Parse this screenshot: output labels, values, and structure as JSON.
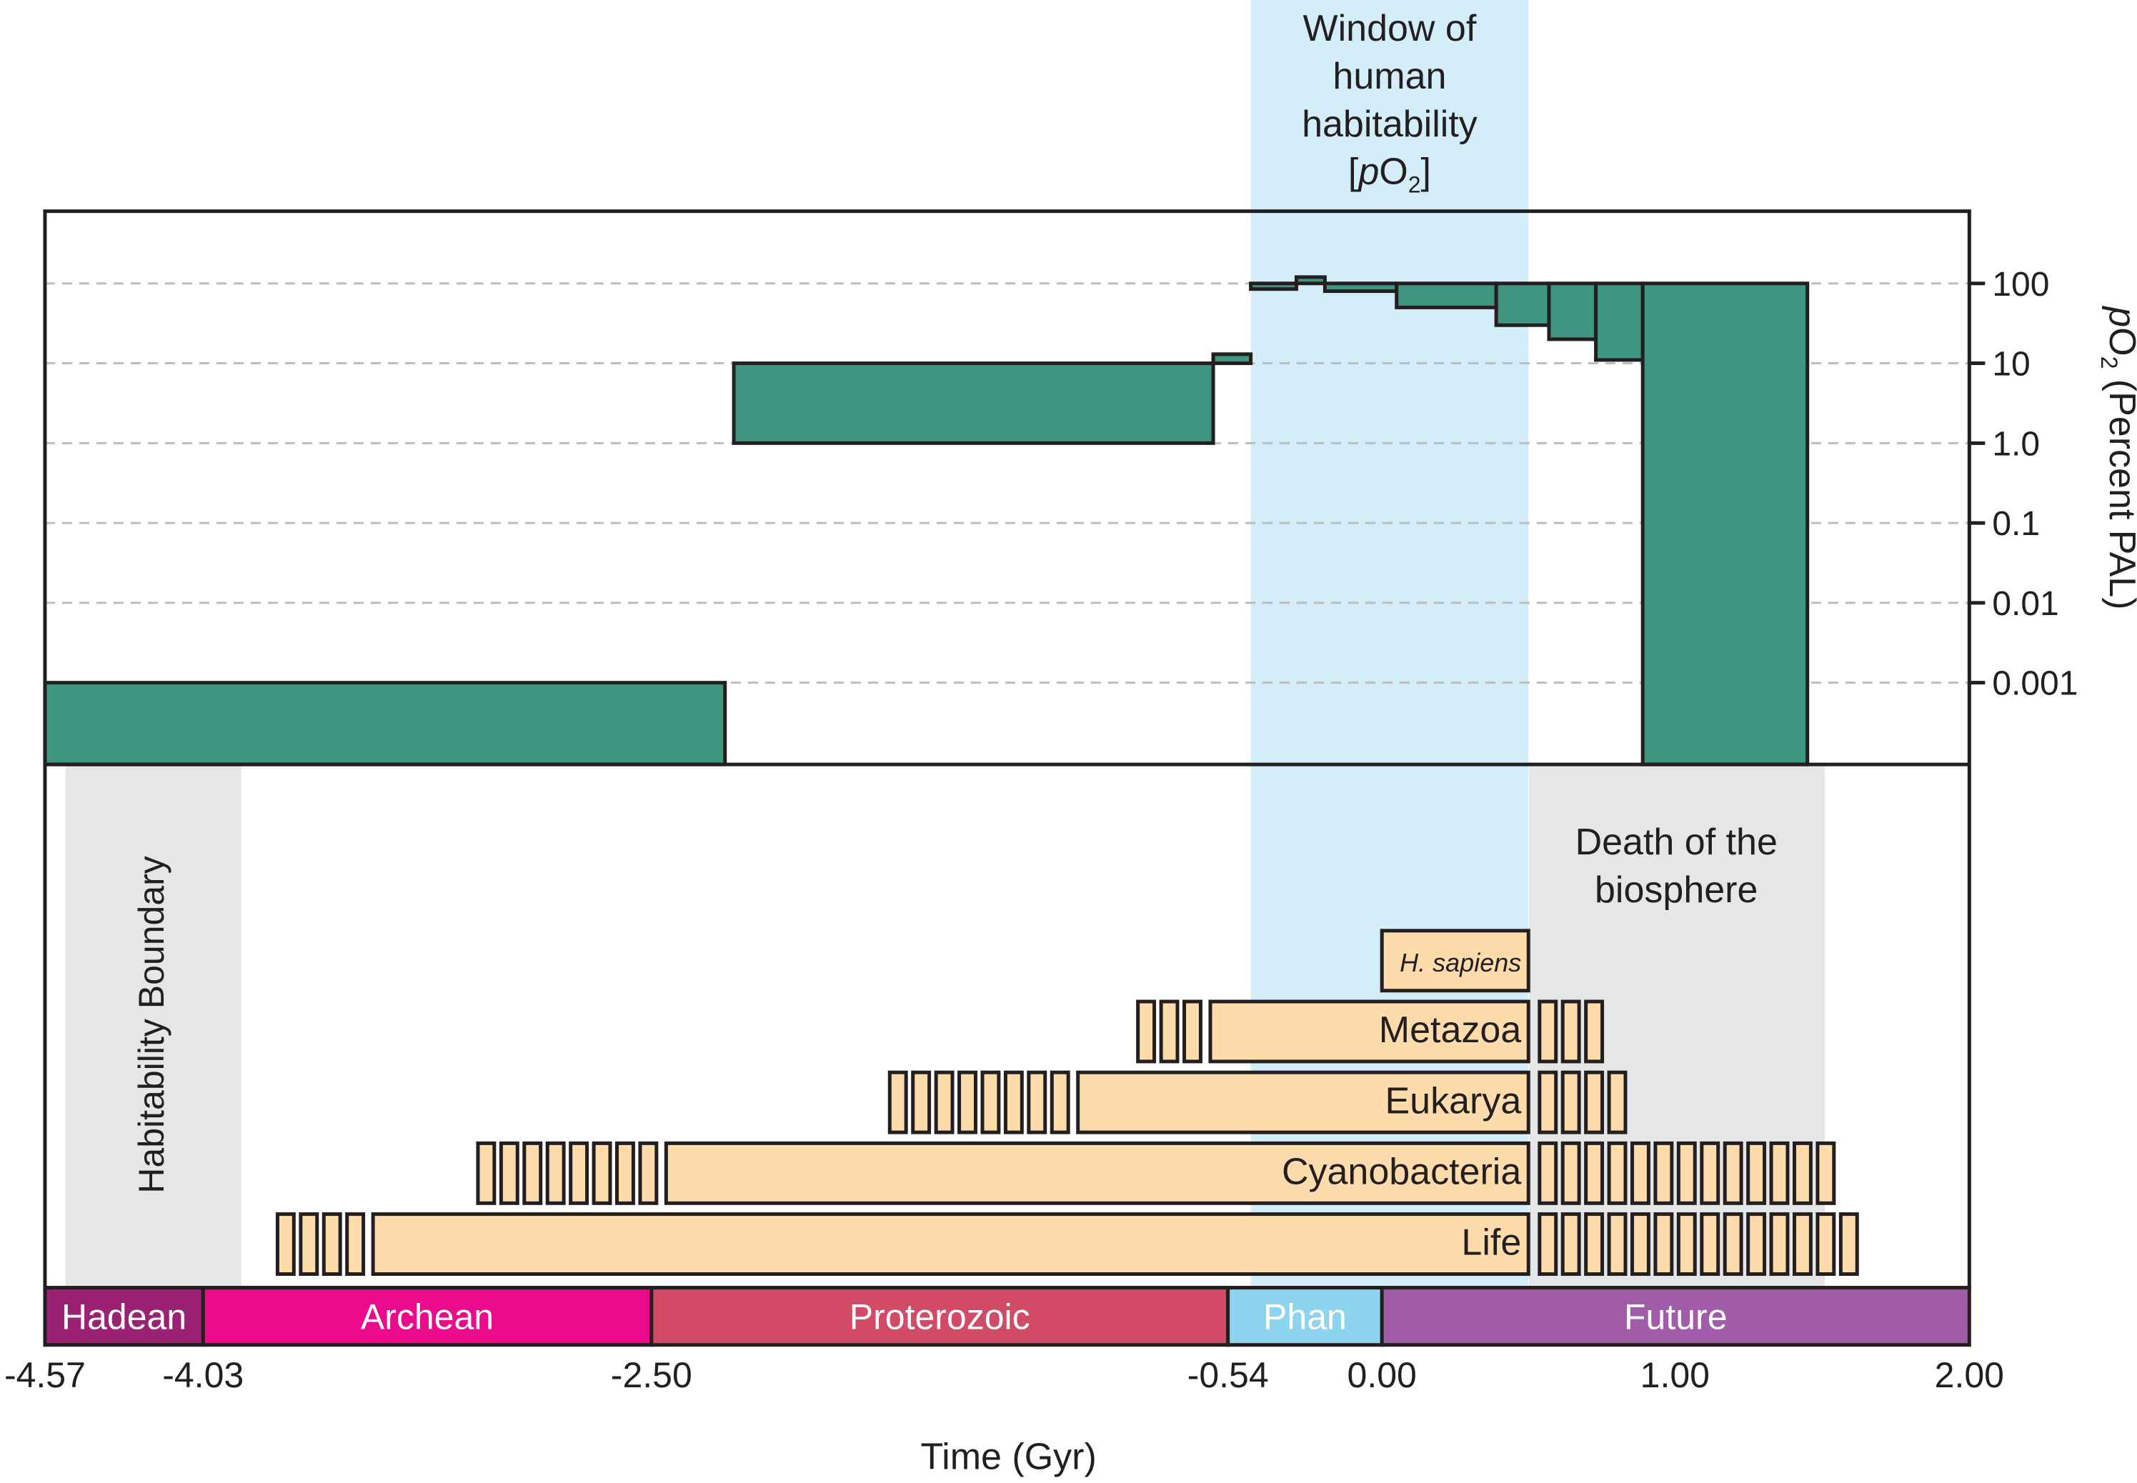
{
  "chart_data": {
    "type": "area",
    "title": "",
    "xlabel": "Time (Gyr)",
    "ylabel": "pO2 (Percent PAL)",
    "ylabel_parts": {
      "p": "p",
      "O": "O",
      "sub": "2",
      "rest": " (Percent PAL)"
    },
    "x_ticks": [
      -4.57,
      -4.03,
      -2.5,
      -0.54,
      0.0,
      1.0,
      2.0
    ],
    "x_tick_labels": [
      "-4.57",
      "-4.03",
      "-2.50",
      "-0.54",
      "0.00",
      "1.00",
      "2.00"
    ],
    "y_scale": "log",
    "y_ticks": [
      100,
      10,
      1.0,
      0.1,
      0.01,
      0.001
    ],
    "y_tick_labels": [
      "100",
      "10",
      "1.0",
      "0.1",
      "0.01",
      "0.001"
    ],
    "grid": true,
    "oxygen_series": [
      {
        "x0": -4.57,
        "x1": -2.25,
        "y_low": "bottom",
        "y_high": 0.001
      },
      {
        "x0": -2.22,
        "x1": -0.59,
        "y_low": 1.0,
        "y_high": 10
      },
      {
        "x0": -0.59,
        "x1": -0.46,
        "y_low": 10,
        "y_high": 13
      },
      {
        "x0": -0.46,
        "x1": -0.3,
        "y_low": 85,
        "y_high": 100
      },
      {
        "x0": -0.3,
        "x1": -0.2,
        "y_low": 100,
        "y_high": 120
      },
      {
        "x0": -0.2,
        "x1": 0.05,
        "y_low": 80,
        "y_high": 100
      },
      {
        "x0": 0.05,
        "x1": 0.39,
        "y_low": 50,
        "y_high": 100
      },
      {
        "x0": 0.39,
        "x1": 0.57,
        "y_low": 30,
        "y_high": 100
      },
      {
        "x0": 0.57,
        "x1": 0.73,
        "y_low": 20,
        "y_high": 100
      },
      {
        "x0": 0.73,
        "x1": 0.89,
        "y_low": 11,
        "y_high": 100
      },
      {
        "x0": 0.89,
        "x1": 1.45,
        "y_low": "bottom",
        "y_high": 100
      }
    ],
    "eras": [
      {
        "name": "Hadean",
        "start": -4.57,
        "end": -4.03,
        "color": "#9b2175"
      },
      {
        "name": "Archean",
        "start": -4.03,
        "end": -2.5,
        "color": "#ec0a8c"
      },
      {
        "name": "Proterozoic",
        "start": -2.5,
        "end": -0.54,
        "color": "#d24b66"
      },
      {
        "name": "Phan",
        "start": -0.54,
        "end": 0.0,
        "color": "#8dd4ee"
      },
      {
        "name": "Future",
        "start": 0.0,
        "end": 2.0,
        "color": "#a05ca8"
      }
    ],
    "life_ranges": [
      {
        "name": "H. sapiens",
        "italic": true,
        "start": 0.0,
        "end": 0.5,
        "uncertain_before": 0,
        "uncertain_after": 0
      },
      {
        "name": "Metazoa",
        "start": -0.6,
        "end": 0.5,
        "uncertain_before": 3,
        "uncertain_after": 3
      },
      {
        "name": "Eukarya",
        "start": -1.05,
        "end": 0.5,
        "uncertain_before": 8,
        "uncertain_after": 4
      },
      {
        "name": "Cyanobacteria",
        "start": -2.45,
        "end": 0.5,
        "uncertain_before": 8,
        "uncertain_after": 13
      },
      {
        "name": "Life",
        "start": -3.45,
        "end": 0.5,
        "uncertain_before": 4,
        "uncertain_after": 14
      }
    ],
    "annotations": {
      "window": {
        "lines": [
          "Window of",
          "human",
          "habitability"
        ],
        "bracket_label": {
          "open": "[",
          "p": "p",
          "O": "O",
          "sub": "2",
          "close": "]"
        },
        "start": -0.46,
        "end": 0.5,
        "color": "#d3edf9"
      },
      "habitability_boundary": {
        "label": "Habitability Boundary",
        "start": -4.5,
        "end": -3.9,
        "color": "#e5e6e8"
      },
      "death_of_biosphere": {
        "lines": [
          "Death of the",
          "biosphere"
        ],
        "start": 0.5,
        "end": 1.5,
        "color": "#e5e6e8"
      }
    },
    "colors": {
      "oxygen": "#409580",
      "life": "#fedbab",
      "outline": "#231f20",
      "grid": "#bdbdbd"
    }
  }
}
